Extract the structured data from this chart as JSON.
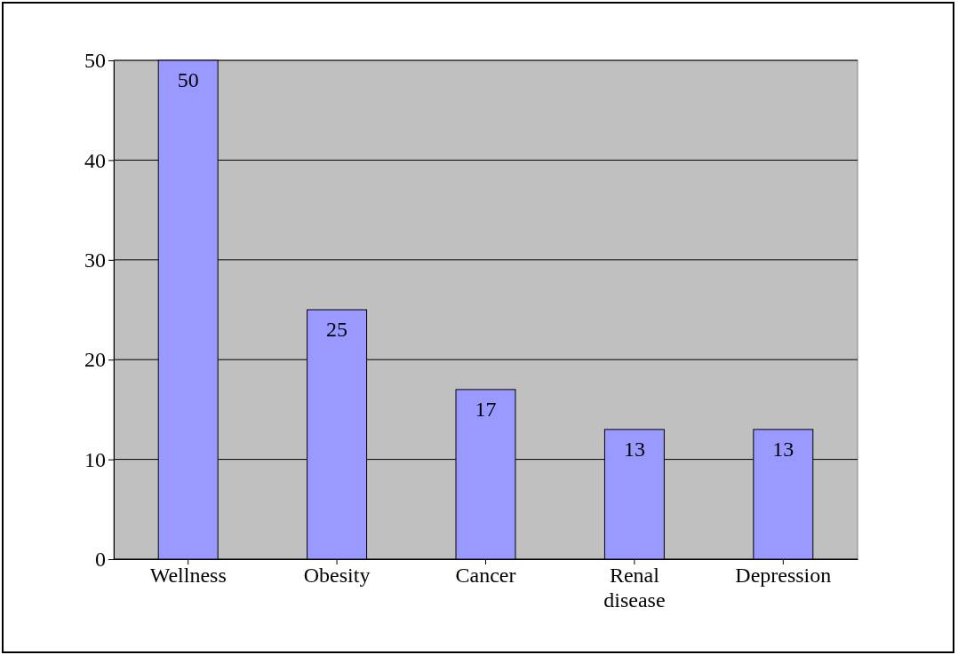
{
  "chart_data": {
    "type": "bar",
    "categories": [
      "Wellness",
      "Obesity",
      "Cancer",
      "Renal disease",
      "Depression"
    ],
    "values": [
      50,
      25,
      17,
      13,
      13
    ],
    "color": "#9999ff",
    "ylim": [
      0,
      50
    ],
    "yticks": [
      0,
      10,
      20,
      30,
      40,
      50
    ],
    "grid": "y",
    "data_labels": true
  }
}
